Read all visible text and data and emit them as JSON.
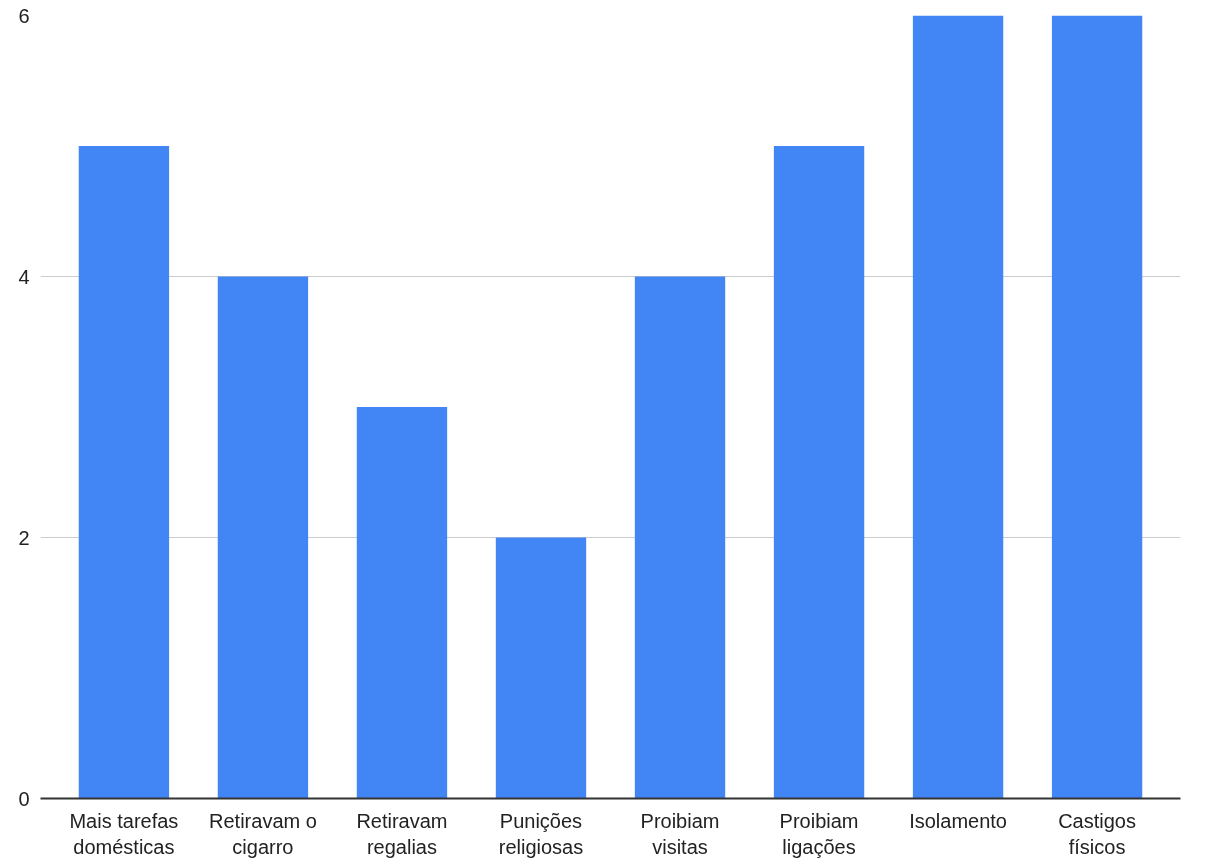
{
  "chart_data": {
    "type": "bar",
    "categories": [
      "Mais tarefas domésticas",
      "Retiravam o cigarro",
      "Retiravam regalias",
      "Punições religiosas",
      "Proibiam visitas",
      "Proibiam ligações",
      "Isolamento",
      "Castigos físicos"
    ],
    "values": [
      5,
      4,
      3,
      2,
      4,
      5,
      6,
      6
    ],
    "color": "#4285f4",
    "ylim": [
      0,
      6
    ],
    "yticks": [
      0,
      2,
      4,
      6
    ],
    "grid": "y"
  }
}
